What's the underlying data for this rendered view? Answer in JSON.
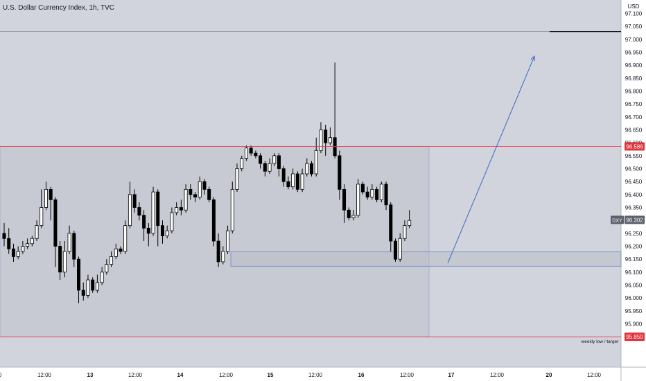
{
  "header": {
    "title": "U.S. Dollar Currency Index, 1h, TVC"
  },
  "colors": {
    "plot_bg": "#d1d4dc",
    "axis_bg": "#ffffff",
    "candle": "#000000",
    "resistance": "#f23645",
    "zone_stroke": "#5b7cc6",
    "zone_fill": "#b9bdc6",
    "arrow": "#3c66c4",
    "price_tag_red": "#e0333a",
    "price_tag_dark": "#5d606b"
  },
  "chart_data": {
    "type": "candlestick",
    "title": "U.S. Dollar Currency Index, 1h, TVC",
    "currency": "USD",
    "ylim": [
      95.8,
      97.15
    ],
    "y_ticks": [
      "97.100",
      "97.050",
      "97.000",
      "96.950",
      "96.900",
      "96.850",
      "96.800",
      "96.750",
      "96.700",
      "96.650",
      "96.600",
      "96.550",
      "96.500",
      "96.450",
      "96.400",
      "96.350",
      "96.300",
      "96.250",
      "96.200",
      "96.150",
      "96.100",
      "96.050",
      "96.000",
      "95.950",
      "95.900"
    ],
    "x_labels": [
      "0",
      "12:00",
      "13",
      "12:00",
      "14",
      "12:00",
      "15",
      "12:00",
      "16",
      "12:00",
      "17",
      "12:00",
      "20",
      "12:00"
    ],
    "price_tags": [
      {
        "label": "96.586",
        "value": 96.586,
        "style": "red"
      },
      {
        "label": "96.302",
        "value": 96.302,
        "style": "dark",
        "symbol": "DXY"
      },
      {
        "label": "95.850",
        "value": 95.85,
        "style": "red"
      }
    ],
    "levels": [
      {
        "value": 96.586,
        "kind": "resistance"
      },
      {
        "value": 95.85,
        "kind": "support",
        "label": "weekly low / target"
      },
      {
        "value": 97.03,
        "kind": "range-top"
      }
    ],
    "zone": {
      "top": 96.178,
      "bottom": 96.123
    },
    "arrow": {
      "from": 96.135,
      "to": 96.935
    },
    "candles": [
      [
        96.25,
        96.23,
        96.29,
        96.2
      ],
      [
        96.23,
        96.19,
        96.27,
        96.17
      ],
      [
        96.19,
        96.16,
        96.21,
        96.14
      ],
      [
        96.16,
        96.18,
        96.2,
        96.15
      ],
      [
        96.18,
        96.2,
        96.22,
        96.17
      ],
      [
        96.2,
        96.21,
        96.23,
        96.19
      ],
      [
        96.21,
        96.23,
        96.24,
        96.2
      ],
      [
        96.23,
        96.28,
        96.3,
        96.22
      ],
      [
        96.28,
        96.35,
        96.42,
        96.27
      ],
      [
        96.35,
        96.42,
        96.45,
        96.34
      ],
      [
        96.42,
        96.38,
        96.43,
        96.3
      ],
      [
        96.38,
        96.2,
        96.39,
        96.12
      ],
      [
        96.2,
        96.1,
        96.22,
        96.07
      ],
      [
        96.1,
        96.18,
        96.22,
        96.08
      ],
      [
        96.18,
        96.25,
        96.28,
        96.17
      ],
      [
        96.25,
        96.15,
        96.26,
        96.12
      ],
      [
        96.15,
        96.03,
        96.16,
        95.98
      ],
      [
        96.03,
        96.01,
        96.06,
        95.99
      ],
      [
        96.01,
        96.07,
        96.09,
        96.0
      ],
      [
        96.07,
        96.03,
        96.08,
        96.02
      ],
      [
        96.03,
        96.06,
        96.09,
        96.02
      ],
      [
        96.06,
        96.1,
        96.12,
        96.05
      ],
      [
        96.1,
        96.13,
        96.15,
        96.09
      ],
      [
        96.13,
        96.16,
        96.18,
        96.12
      ],
      [
        96.16,
        96.19,
        96.21,
        96.15
      ],
      [
        96.19,
        96.18,
        96.2,
        96.17
      ],
      [
        96.18,
        96.28,
        96.3,
        96.17
      ],
      [
        96.28,
        96.4,
        96.45,
        96.27
      ],
      [
        96.4,
        96.35,
        96.42,
        96.33
      ],
      [
        96.35,
        96.32,
        96.37,
        96.3
      ],
      [
        96.32,
        96.27,
        96.34,
        96.22
      ],
      [
        96.27,
        96.25,
        96.29,
        96.2
      ],
      [
        96.25,
        96.41,
        96.43,
        96.24
      ],
      [
        96.41,
        96.28,
        96.42,
        96.2
      ],
      [
        96.28,
        96.24,
        96.3,
        96.21
      ],
      [
        96.24,
        96.26,
        96.28,
        96.23
      ],
      [
        96.26,
        96.33,
        96.35,
        96.25
      ],
      [
        96.33,
        96.35,
        96.37,
        96.32
      ],
      [
        96.35,
        96.34,
        96.38,
        96.32
      ],
      [
        96.34,
        96.42,
        96.44,
        96.33
      ],
      [
        96.42,
        96.4,
        96.44,
        96.38
      ],
      [
        96.4,
        96.39,
        96.41,
        96.37
      ],
      [
        96.39,
        96.45,
        96.47,
        96.38
      ],
      [
        96.45,
        96.42,
        96.46,
        96.4
      ],
      [
        96.42,
        96.38,
        96.43,
        96.37
      ],
      [
        96.38,
        96.22,
        96.39,
        96.2
      ],
      [
        96.22,
        96.14,
        96.25,
        96.12
      ],
      [
        96.14,
        96.18,
        96.2,
        96.13
      ],
      [
        96.18,
        96.26,
        96.28,
        96.17
      ],
      [
        96.26,
        96.42,
        96.45,
        96.25
      ],
      [
        96.42,
        96.5,
        96.52,
        96.41
      ],
      [
        96.5,
        96.54,
        96.55,
        96.49
      ],
      [
        96.54,
        96.58,
        96.59,
        96.53
      ],
      [
        96.58,
        96.56,
        96.59,
        96.55
      ],
      [
        96.56,
        96.55,
        96.57,
        96.54
      ],
      [
        96.55,
        96.52,
        96.56,
        96.5
      ],
      [
        96.52,
        96.49,
        96.53,
        96.47
      ],
      [
        96.49,
        96.52,
        96.54,
        96.48
      ],
      [
        96.52,
        96.55,
        96.56,
        96.51
      ],
      [
        96.55,
        96.5,
        96.56,
        96.47
      ],
      [
        96.5,
        96.45,
        96.51,
        96.43
      ],
      [
        96.45,
        96.43,
        96.47,
        96.42
      ],
      [
        96.43,
        96.48,
        96.5,
        96.42
      ],
      [
        96.48,
        96.42,
        96.49,
        96.41
      ],
      [
        96.42,
        96.48,
        96.5,
        96.41
      ],
      [
        96.48,
        96.52,
        96.54,
        96.47
      ],
      [
        96.52,
        96.48,
        96.53,
        96.47
      ],
      [
        96.48,
        96.57,
        96.62,
        96.47
      ],
      [
        96.57,
        96.65,
        96.68,
        96.56
      ],
      [
        96.65,
        96.6,
        96.67,
        96.55
      ],
      [
        96.6,
        96.62,
        96.66,
        96.59
      ],
      [
        96.62,
        96.55,
        96.91,
        96.54
      ],
      [
        96.55,
        96.42,
        96.57,
        96.38
      ],
      [
        96.42,
        96.34,
        96.44,
        96.29
      ],
      [
        96.34,
        96.31,
        96.35,
        96.3
      ],
      [
        96.31,
        96.32,
        96.34,
        96.3
      ],
      [
        96.32,
        96.44,
        96.46,
        96.31
      ],
      [
        96.44,
        96.41,
        96.45,
        96.4
      ],
      [
        96.41,
        96.39,
        96.43,
        96.38
      ],
      [
        96.39,
        96.42,
        96.44,
        96.38
      ],
      [
        96.42,
        96.38,
        96.43,
        96.37
      ],
      [
        96.38,
        96.44,
        96.45,
        96.37
      ],
      [
        96.44,
        96.36,
        96.45,
        96.34
      ],
      [
        96.36,
        96.22,
        96.37,
        96.18
      ],
      [
        96.22,
        96.15,
        96.23,
        96.14
      ],
      [
        96.15,
        96.23,
        96.25,
        96.14
      ],
      [
        96.23,
        96.28,
        96.3,
        96.22
      ],
      [
        96.28,
        96.3,
        96.34,
        96.27
      ]
    ]
  }
}
